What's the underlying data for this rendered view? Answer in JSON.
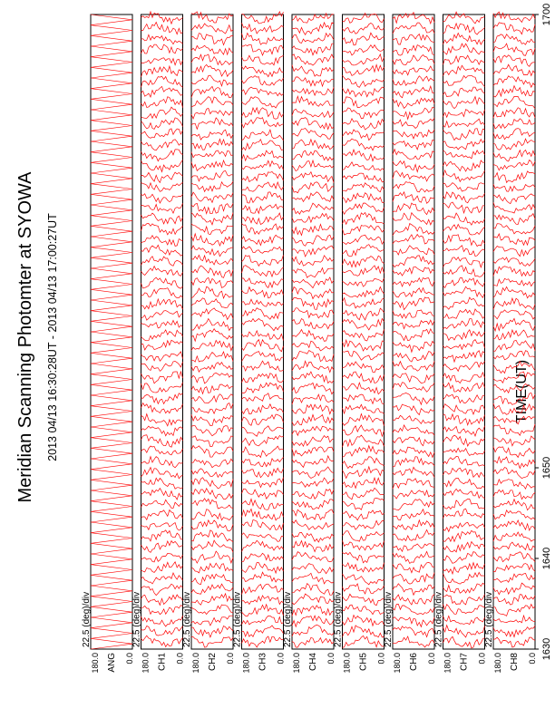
{
  "title": "Meridian Scanning Photomter at SYOWA",
  "time_range": "2013 04/13 16:30:28UT - 2013 04/13 17:00:27UT",
  "colors": {
    "trace": "#ff0000",
    "frame": "#000000",
    "background": "#ffffff"
  },
  "chart_data": {
    "type": "line",
    "title": "Meridian Scanning Photomter at SYOWA",
    "subtitle": "2013 04/13 16:30:28UT - 2013 04/13 17:00:27UT",
    "xlabel": "TIME(UT)",
    "x_ticks": [
      "1630",
      "1640",
      "1650",
      "1700"
    ],
    "xlim": [
      "1630",
      "1700"
    ],
    "scale_label": "22.5 (deg)/div",
    "ylim": [
      0.0,
      180.0
    ],
    "y_ticks": [
      "180.0",
      "0.0"
    ],
    "panels": [
      {
        "label": "ANG",
        "kind": "scan-angle"
      },
      {
        "label": "CH1",
        "kind": "intensity"
      },
      {
        "label": "CH2",
        "kind": "intensity"
      },
      {
        "label": "CH3",
        "kind": "intensity"
      },
      {
        "label": "CH4",
        "kind": "intensity"
      },
      {
        "label": "CH5",
        "kind": "intensity"
      },
      {
        "label": "CH6",
        "kind": "intensity"
      },
      {
        "label": "CH7",
        "kind": "intensity"
      },
      {
        "label": "CH8",
        "kind": "intensity"
      }
    ]
  }
}
